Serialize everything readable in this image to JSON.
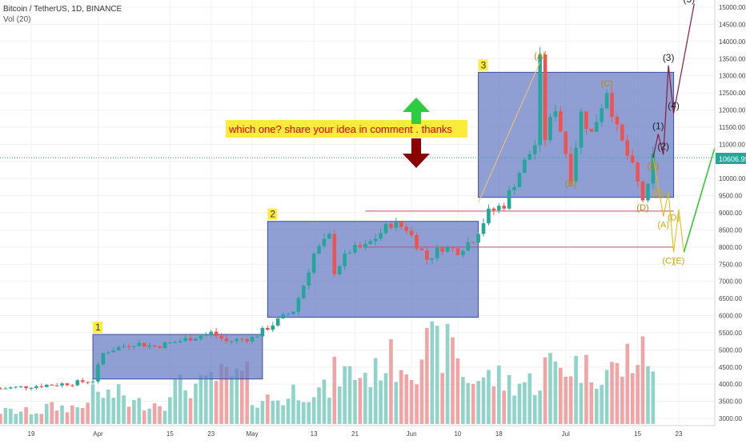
{
  "header": {
    "symbol_line": "Bitcoin / TetherUS, 1D, BINANCE",
    "indicator": "Vol (20)"
  },
  "colors": {
    "up": "#26a69a",
    "down": "#ef5350",
    "vol_up": "#8fd3c9",
    "vol_down": "#f2a3a3",
    "box_fill": "#6a7fc4",
    "box_stroke": "#3b4fa3",
    "label_bg": "#ffeb3b",
    "label_text": "#e00000",
    "wave_gold": "#e6b800",
    "wave_dark": "#8b1a3a",
    "wave_green": "#22cc22",
    "arrow_up": "#2ecc40",
    "arrow_down": "#8b0000",
    "price_tag": "#26a69a",
    "support_line": "#c0506a"
  },
  "annotation": {
    "question": "which one? share your idea in comment . thanks",
    "up_arrow": "green-up-arrow",
    "down_arrow": "dark-red-down-arrow"
  },
  "boxes": [
    {
      "label": "1",
      "price_low": 4150,
      "price_high": 5450,
      "date_start": "2019-03-31",
      "date_end": "2019-05-03"
    },
    {
      "label": "2",
      "price_low": 5950,
      "price_high": 8750,
      "date_start": "2019-05-04",
      "date_end": "2019-06-14"
    },
    {
      "label": "3",
      "price_low": 9450,
      "price_high": 13100,
      "date_start": "2019-06-14",
      "date_end": "2019-07-22"
    }
  ],
  "chart_data": {
    "type": "candlestick",
    "title": "Bitcoin / TetherUS, 1D, BINANCE",
    "x_axis": {
      "tick_labels": [
        "19",
        "Apr",
        "15",
        "23",
        "May",
        "13",
        "21",
        "Jun",
        "10",
        "18",
        "Jul",
        "15",
        "23"
      ],
      "tick_dates": [
        "2019-03-19",
        "2019-04-01",
        "2019-04-15",
        "2019-04-23",
        "2019-05-01",
        "2019-05-13",
        "2019-05-21",
        "2019-06-01",
        "2019-06-10",
        "2019-06-18",
        "2019-07-01",
        "2019-07-15",
        "2019-07-23"
      ]
    },
    "y_axis": {
      "tick_labels": [
        "15000.00",
        "14500.00",
        "14000.00",
        "13500.00",
        "13000.00",
        "12500.00",
        "12000.00",
        "11500.00",
        "11000.00",
        "10500.00",
        "10000.00",
        "9500.00",
        "9000.00",
        "8500.00",
        "8000.00",
        "7500.00",
        "7000.00",
        "6500.00",
        "6000.00",
        "5500.00",
        "5000.00",
        "4500.00",
        "4000.00",
        "3500.00",
        "3000.00"
      ],
      "ylim": [
        2950,
        15100
      ],
      "scale": "linear"
    },
    "last_price": "10606.99",
    "price_series": [
      {
        "date": "2019-03-13",
        "close": 3870
      },
      {
        "date": "2019-03-20",
        "close": 3950
      },
      {
        "date": "2019-03-27",
        "close": 4030
      },
      {
        "date": "2019-03-31",
        "close": 4110
      },
      {
        "date": "2019-04-02",
        "close": 4900
      },
      {
        "date": "2019-04-03",
        "close": 4980
      },
      {
        "date": "2019-04-08",
        "close": 5200
      },
      {
        "date": "2019-04-12",
        "close": 5100
      },
      {
        "date": "2019-04-16",
        "close": 5230
      },
      {
        "date": "2019-04-23",
        "close": 5500
      },
      {
        "date": "2019-04-26",
        "close": 5250
      },
      {
        "date": "2019-05-01",
        "close": 5350
      },
      {
        "date": "2019-05-05",
        "close": 5750
      },
      {
        "date": "2019-05-09",
        "close": 6150
      },
      {
        "date": "2019-05-11",
        "close": 6900
      },
      {
        "date": "2019-05-13",
        "close": 7800
      },
      {
        "date": "2019-05-16",
        "close": 8300
      },
      {
        "date": "2019-05-17",
        "close": 7300
      },
      {
        "date": "2019-05-20",
        "close": 7900
      },
      {
        "date": "2019-05-23",
        "close": 8000
      },
      {
        "date": "2019-05-28",
        "close": 8700
      },
      {
        "date": "2019-05-31",
        "close": 8550
      },
      {
        "date": "2019-06-04",
        "close": 7650
      },
      {
        "date": "2019-06-07",
        "close": 8000
      },
      {
        "date": "2019-06-10",
        "close": 7900
      },
      {
        "date": "2019-06-13",
        "close": 8250
      },
      {
        "date": "2019-06-16",
        "close": 9000
      },
      {
        "date": "2019-06-19",
        "close": 9250
      },
      {
        "date": "2019-06-22",
        "close": 10200
      },
      {
        "date": "2019-06-25",
        "close": 11000
      },
      {
        "date": "2019-06-26",
        "close": 13400
      },
      {
        "date": "2019-06-27",
        "close": 11200
      },
      {
        "date": "2019-06-29",
        "close": 12100
      },
      {
        "date": "2019-07-02",
        "close": 10100
      },
      {
        "date": "2019-07-04",
        "close": 11900
      },
      {
        "date": "2019-07-06",
        "close": 11300
      },
      {
        "date": "2019-07-09",
        "close": 12600
      },
      {
        "date": "2019-07-11",
        "close": 11400
      },
      {
        "date": "2019-07-14",
        "close": 10300
      },
      {
        "date": "2019-07-16",
        "close": 9400
      },
      {
        "date": "2019-07-17",
        "close": 9700
      },
      {
        "date": "2019-07-18",
        "close": 10606.99
      }
    ],
    "volume_series": {
      "y_range": [
        0,
        1
      ],
      "note_levels": [
        0.15,
        0.2,
        0.35,
        0.25,
        0.45,
        0.55,
        0.3,
        0.4,
        0.6,
        0.75,
        0.9,
        0.55,
        0.5,
        0.7,
        0.65,
        0.8
      ]
    },
    "horizontal_levels": [
      9050,
      8000
    ],
    "elliott_labels": {
      "gold_peaks": [
        {
          "label": "(A)",
          "date": "2019-06-26",
          "price": 13400
        },
        {
          "label": "(B)",
          "date": "2019-07-02",
          "price": 10100
        },
        {
          "label": "(C)",
          "date": "2019-07-09",
          "price": 12600
        },
        {
          "label": "(D)",
          "date": "2019-07-16",
          "price": 9400
        },
        {
          "label": "(E)",
          "date": "2019-07-18",
          "price": 10606.99
        }
      ],
      "projection_gold": [
        {
          "label": "(B)",
          "date": "2019-07-19",
          "price": 9800
        },
        {
          "label": "(A)",
          "date": "2019-07-20",
          "price": 8900
        },
        {
          "label": "(D)",
          "date": "2019-07-22",
          "price": 9100
        },
        {
          "label": "(C)",
          "date": "2019-07-21",
          "price": 7850
        },
        {
          "label": "(E)",
          "date": "2019-07-23",
          "price": 7850
        }
      ],
      "projection_dark": [
        {
          "label": "(1)",
          "date": "2019-07-19",
          "price": 11300
        },
        {
          "label": "(2)",
          "date": "2019-07-20",
          "price": 10700
        },
        {
          "label": "(3)",
          "date": "2019-07-21",
          "price": 13300
        },
        {
          "label": "(4)",
          "date": "2019-07-22",
          "price": 11900
        },
        {
          "label": "(5)",
          "date": "2019-07-25",
          "price": 15000
        }
      ]
    }
  }
}
